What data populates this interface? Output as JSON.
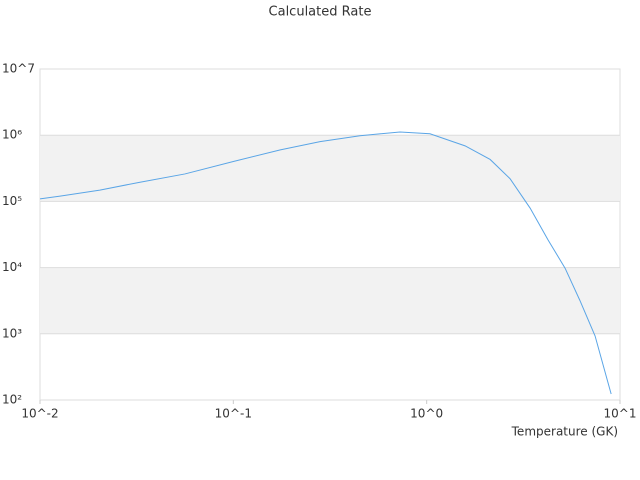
{
  "chart_data": {
    "type": "line",
    "title": "Calculated Rate",
    "x_label": "Temperature (GK)",
    "log_x": true,
    "log_y": true,
    "grid_bands": true,
    "xlim": [
      0.01,
      10
    ],
    "xticks": [
      {
        "value": 0.01,
        "label": "10^-2"
      },
      {
        "value": 0.1,
        "label": "10^-1"
      },
      {
        "value": 1,
        "label": "10^0"
      },
      {
        "value": 10,
        "label": "10^1"
      }
    ],
    "ylim": [
      100,
      10000000
    ],
    "yticks": [
      {
        "value": 100,
        "label": "10²"
      },
      {
        "value": 1000,
        "label": "10³"
      },
      {
        "value": 10000,
        "label": "10⁴"
      },
      {
        "value": 100000,
        "label": "10⁵"
      },
      {
        "value": 1000000,
        "label": "10⁶"
      },
      {
        "value": 10000000,
        "label": "10^7"
      }
    ],
    "series": [
      {
        "color": "#5aa5e6",
        "x": [
          0.01,
          0.0127,
          0.0204,
          0.0329,
          0.0562,
          0.1,
          0.175,
          0.281,
          0.452,
          0.728,
          1.04,
          1.58,
          2.13,
          2.7,
          3.43,
          4.25,
          5.2,
          6.2,
          7.43,
          9.0
        ],
        "values": [
          109000,
          120000,
          148000,
          195000,
          260000,
          400000,
          600000,
          800000,
          980000,
          1120000,
          1050000,
          690000,
          430000,
          220000,
          79000,
          26000,
          9800,
          3200,
          930,
          123
        ]
      }
    ]
  }
}
